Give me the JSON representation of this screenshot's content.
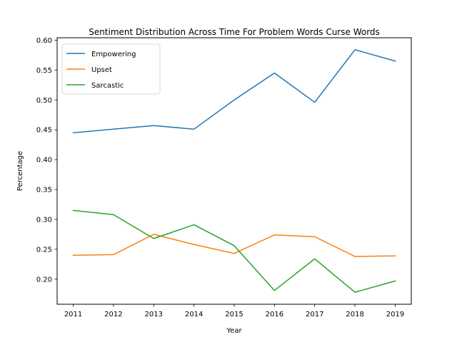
{
  "chart_data": {
    "type": "line",
    "title": "Sentiment Distribution Across Time For Problem Words Curse Words",
    "xlabel": "Year",
    "ylabel": "Percentage",
    "x": [
      2011,
      2012,
      2013,
      2014,
      2015,
      2016,
      2017,
      2018,
      2019
    ],
    "x_tick_labels": [
      "2011",
      "2012",
      "2013",
      "2014",
      "2015",
      "2016",
      "2017",
      "2018",
      "2019"
    ],
    "y_ticks": [
      0.2,
      0.25,
      0.3,
      0.35,
      0.4,
      0.45,
      0.5,
      0.55,
      0.6
    ],
    "y_tick_labels": [
      "0.20",
      "0.25",
      "0.30",
      "0.35",
      "0.40",
      "0.45",
      "0.50",
      "0.55",
      "0.60"
    ],
    "ylim": [
      0.158,
      0.604
    ],
    "grid": false,
    "legend_position": "top-left",
    "series": [
      {
        "name": "Empowering",
        "color": "#1f77b4",
        "values": [
          0.445,
          0.451,
          0.457,
          0.451,
          0.5,
          0.545,
          0.496,
          0.584,
          0.565
        ]
      },
      {
        "name": "Upset",
        "color": "#ff7f0e",
        "values": [
          0.24,
          0.241,
          0.275,
          0.258,
          0.243,
          0.274,
          0.271,
          0.238,
          0.239
        ]
      },
      {
        "name": "Sarcastic",
        "color": "#2ca02c",
        "values": [
          0.315,
          0.308,
          0.268,
          0.291,
          0.256,
          0.181,
          0.234,
          0.178,
          0.197
        ]
      }
    ]
  }
}
